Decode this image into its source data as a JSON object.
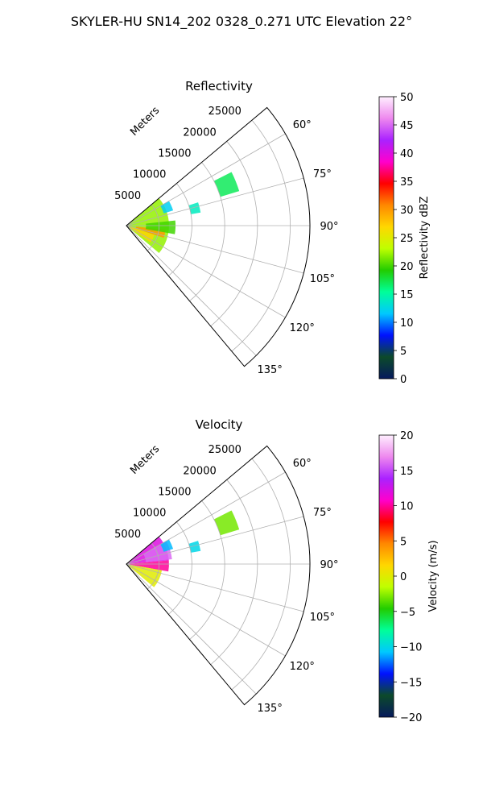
{
  "suptitle": "SKYLER-HU  SN14_202  0328_0.271 UTC Elevation 22°",
  "chart_data": [
    {
      "type": "polar-sector-heatmap",
      "title": "Reflectivity",
      "radial_label": "Meters",
      "radial_ticks": [
        5000,
        10000,
        15000,
        20000,
        25000
      ],
      "radial_tick_labels": [
        "5000",
        "10000",
        "15000",
        "20000",
        "25000"
      ],
      "r_max": 28000,
      "angle_range_deg": [
        50,
        140
      ],
      "angle_ticks_deg": [
        60,
        75,
        90,
        105,
        120,
        135
      ],
      "angle_tick_labels": [
        "60°",
        "75°",
        "90°",
        "105°",
        "120°",
        "135°"
      ],
      "grid": true,
      "colorbar": {
        "label": "Reflectivity dBZ",
        "vmin": 0,
        "vmax": 50,
        "ticks": [
          0,
          5,
          10,
          15,
          20,
          25,
          30,
          35,
          40,
          45,
          50
        ],
        "tick_labels": [
          "0",
          "5",
          "10",
          "15",
          "20",
          "25",
          "30",
          "35",
          "40",
          "45",
          "50"
        ],
        "stops": [
          "#061a5c",
          "#0c4a2a",
          "#0011ff",
          "#00c8ff",
          "#00ff99",
          "#22cc00",
          "#bfff00",
          "#ffd700",
          "#ff8800",
          "#ff0000",
          "#ff00cc",
          "#aa22ff",
          "#ee88ee",
          "#fff0ff"
        ]
      },
      "echo_regions": [
        {
          "r": [
            100,
            6500
          ],
          "theta": [
            50,
            130
          ],
          "value": 22
        },
        {
          "r": [
            1500,
            6000
          ],
          "theta": [
            96,
            108
          ],
          "value": 30
        },
        {
          "r": [
            500,
            4500
          ],
          "theta": [
            108,
            125
          ],
          "value": 27
        },
        {
          "r": [
            3000,
            7500
          ],
          "theta": [
            84,
            100
          ],
          "value": 20
        },
        {
          "r": [
            6000,
            7500
          ],
          "theta": [
            60,
            72
          ],
          "value": 12
        },
        {
          "r": [
            10000,
            11500
          ],
          "theta": [
            72,
            80
          ],
          "value": 14
        },
        {
          "r": [
            15000,
            18000
          ],
          "theta": [
            63,
            73
          ],
          "value": 17
        }
      ]
    },
    {
      "type": "polar-sector-heatmap",
      "title": "Velocity",
      "radial_label": "Meters",
      "radial_ticks": [
        5000,
        10000,
        15000,
        20000,
        25000
      ],
      "radial_tick_labels": [
        "5000",
        "10000",
        "15000",
        "20000",
        "25000"
      ],
      "r_max": 28000,
      "angle_range_deg": [
        50,
        140
      ],
      "angle_ticks_deg": [
        60,
        75,
        90,
        105,
        120,
        135
      ],
      "angle_tick_labels": [
        "60°",
        "75°",
        "90°",
        "105°",
        "120°",
        "135°"
      ],
      "grid": true,
      "colorbar": {
        "label": "Velocity (m/s)",
        "vmin": -20,
        "vmax": 20,
        "ticks": [
          -20,
          -15,
          -10,
          -5,
          0,
          5,
          10,
          15,
          20
        ],
        "tick_labels": [
          "−20",
          "−15",
          "−10",
          "−5",
          "0",
          "5",
          "10",
          "15",
          "20"
        ],
        "stops": [
          "#061a5c",
          "#0c4a2a",
          "#0011ff",
          "#00c8ff",
          "#00ff99",
          "#22cc00",
          "#bfff00",
          "#ffd700",
          "#ff8800",
          "#ff0000",
          "#ff00cc",
          "#aa22ff",
          "#ee88ee",
          "#fff0ff"
        ]
      },
      "echo_regions": [
        {
          "r": [
            100,
            6500
          ],
          "theta": [
            50,
            85
          ],
          "value": 12
        },
        {
          "r": [
            3000,
            7000
          ],
          "theta": [
            60,
            84
          ],
          "value": 16
        },
        {
          "r": [
            500,
            6500
          ],
          "theta": [
            85,
            100
          ],
          "value": 10
        },
        {
          "r": [
            300,
            5500
          ],
          "theta": [
            100,
            130
          ],
          "value": 0
        },
        {
          "r": [
            6000,
            7500
          ],
          "theta": [
            60,
            72
          ],
          "value": -11
        },
        {
          "r": [
            10000,
            11500
          ],
          "theta": [
            72,
            80
          ],
          "value": -10
        },
        {
          "r": [
            15000,
            18000
          ],
          "theta": [
            63,
            73
          ],
          "value": -3
        }
      ]
    }
  ]
}
